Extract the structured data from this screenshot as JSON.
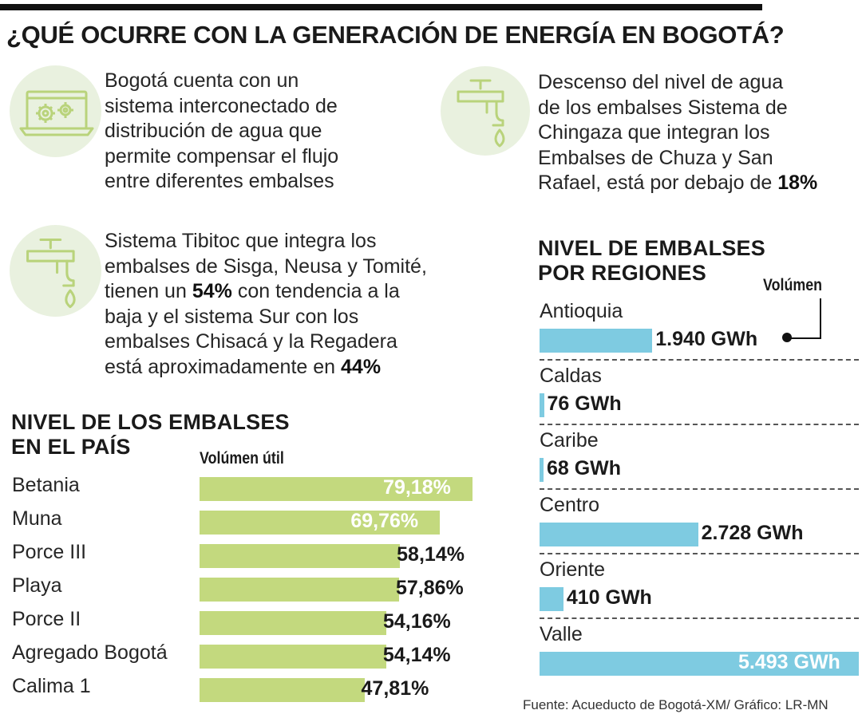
{
  "title": "¿QUÉ OCURRE CON LA GENERACIÓN DE ENERGÍA EN BOGOTÁ?",
  "colors": {
    "green_bar": "#c3d97e",
    "blue_bar": "#7ecbe1",
    "icon_bg": "#e9f1df",
    "icon_stroke": "#b9d37b"
  },
  "info_blocks": [
    {
      "icon": "laptop-gears-icon",
      "lines": [
        "Bogotá cuenta con un",
        "sistema interconectado de",
        "distribución de agua que",
        "permite compensar el flujo",
        "entre diferentes embalses"
      ]
    },
    {
      "icon": "water-tap-icon",
      "lines": [
        "Descenso del nivel de agua",
        "de los embalses Sistema de",
        "Chingaza que integran los",
        "Embalses de Chuza y San"
      ],
      "last_line_prefix": "Rafael, está por debajo de ",
      "last_line_bold": "18%"
    },
    {
      "icon": "water-tap-icon",
      "lines": [
        "Sistema Tibitoc que integra los",
        "embalses de Sisga, Neusa y Tomité,"
      ],
      "l3_prefix": "tienen un ",
      "l3_bold": "54%",
      "l3_suffix": " con tendencia a la",
      "lines2": [
        "baja y el sistema Sur con los",
        "embalses Chisacá y la Regadera"
      ],
      "l6_prefix": "está aproximadamente en ",
      "l6_bold": "44%"
    }
  ],
  "chart_data": [
    {
      "type": "bar",
      "orientation": "horizontal",
      "title_line1": "NIVEL DE LOS EMBALSES",
      "title_line2": "EN EL PAÍS",
      "series_label": "Volúmen útil",
      "unit": "%",
      "categories": [
        "Betania",
        "Muna",
        "Porce III",
        "Playa",
        "Porce II",
        "Agregado Bogotá",
        "Calima 1"
      ],
      "values": [
        79.18,
        69.76,
        58.14,
        57.86,
        54.16,
        54.14,
        47.81
      ],
      "value_labels": [
        "79,18%",
        "69,76%",
        "58,14%",
        "57,86%",
        "54,16%",
        "54,14%",
        "47,81%"
      ]
    },
    {
      "type": "bar",
      "orientation": "horizontal",
      "title_line1": "NIVEL DE EMBALSES",
      "title_line2": "POR REGIONES",
      "series_label": "Volúmen",
      "unit": "GWh",
      "categories": [
        "Antioquia",
        "Caldas",
        "Caribe",
        "Centro",
        "Oriente",
        "Valle"
      ],
      "values": [
        1940,
        76,
        68,
        2728,
        410,
        5493
      ],
      "value_labels": [
        "1.940 GWh",
        "76 GWh",
        "68 GWh",
        "2.728 GWh",
        "410 GWh",
        "5.493 GWh"
      ]
    }
  ],
  "source": "Fuente: Acueducto de Bogotá-XM/ Gráfico: LR-MN"
}
